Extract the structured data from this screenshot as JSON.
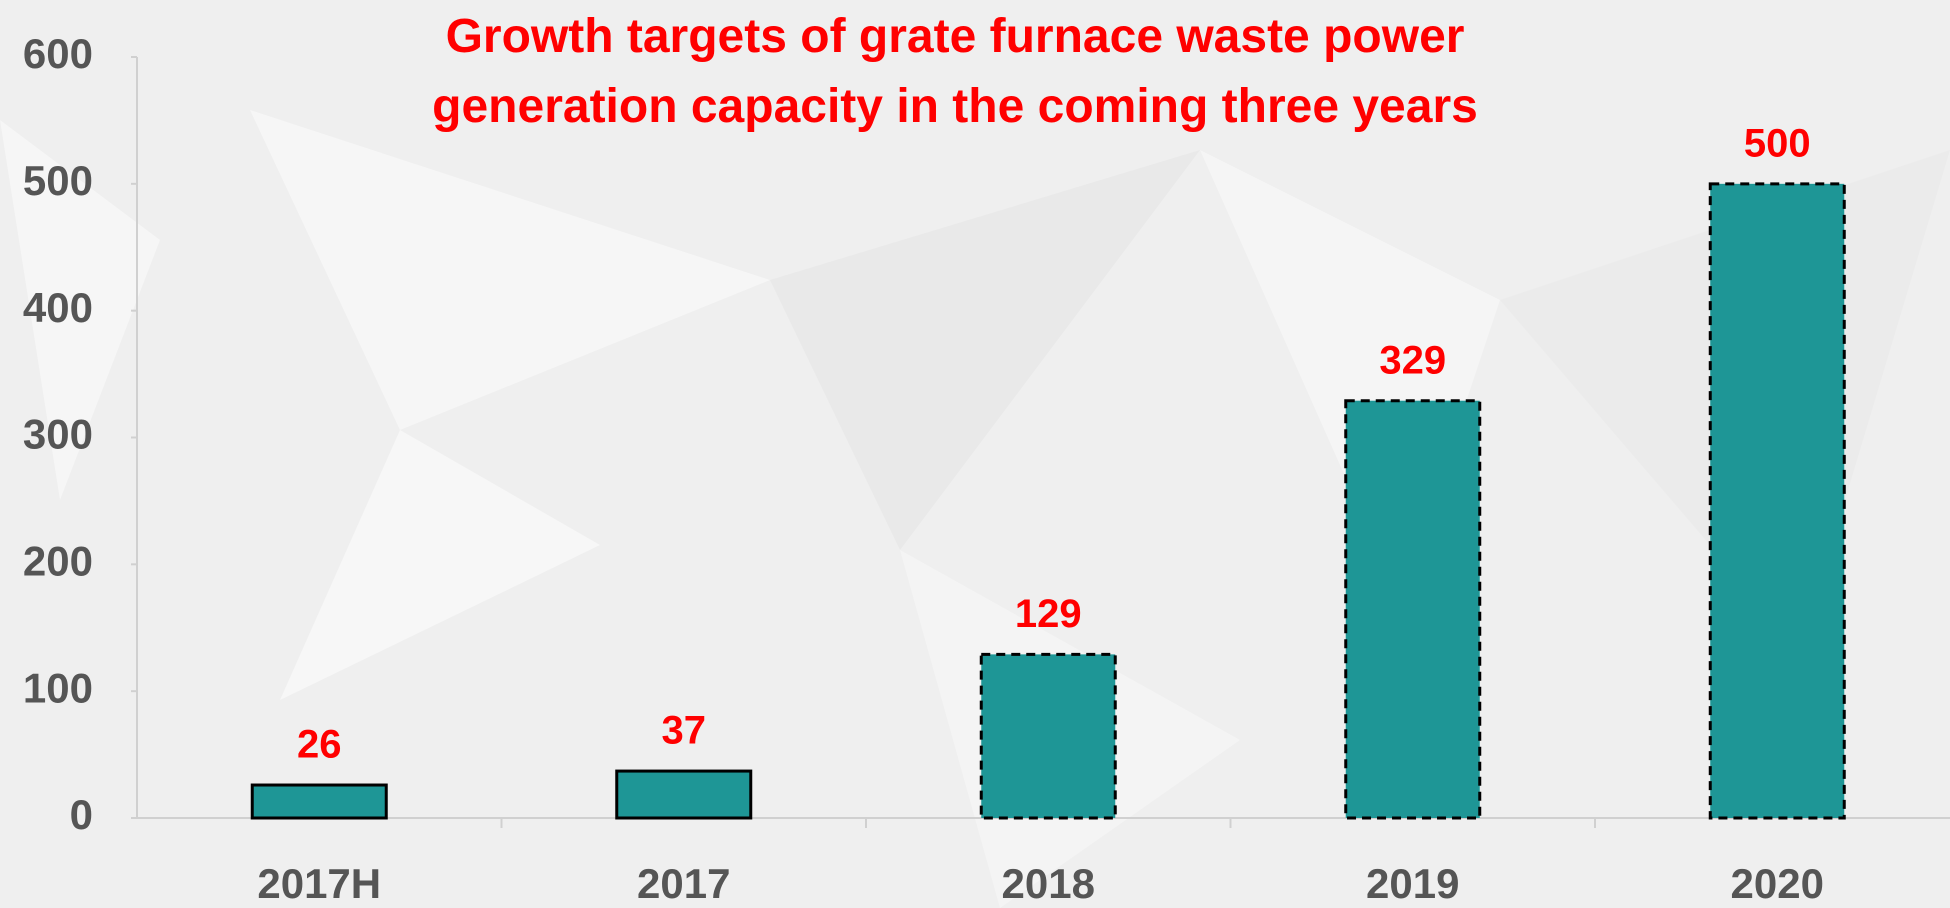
{
  "chart_data": {
    "type": "bar",
    "title": "Growth targets of grate furnace waste power generation capacity in the coming three years",
    "categories": [
      "2017H",
      "2017",
      "2018",
      "2019",
      "2020"
    ],
    "values": [
      26,
      37,
      129,
      329,
      500
    ],
    "color": "#1e9696",
    "border_styles": [
      "solid",
      "solid",
      "dashed",
      "dashed",
      "dashed"
    ],
    "ylim": [
      0,
      600
    ],
    "yticks": [
      0,
      100,
      200,
      300,
      400,
      500,
      600
    ],
    "grid": false
  }
}
